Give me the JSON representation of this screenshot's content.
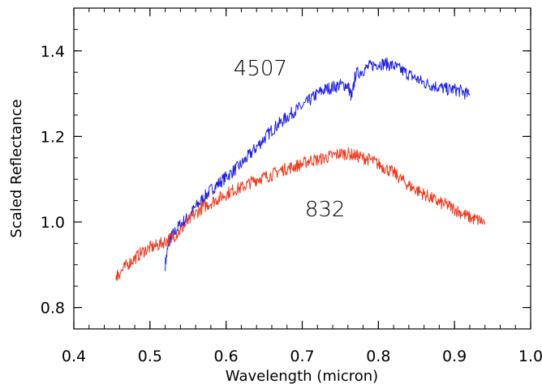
{
  "chart_data": {
    "type": "line",
    "title": "",
    "xlabel": "Wavelength (micron)",
    "ylabel": "Scaled Reflectance",
    "xlim": [
      0.4,
      1.0
    ],
    "ylim": [
      0.75,
      1.5
    ],
    "x_ticks": [
      0.4,
      0.5,
      0.6,
      0.7,
      0.8,
      0.9,
      1.0
    ],
    "x_tick_labels": [
      "0.4",
      "0.5",
      "0.6",
      "0.7",
      "0.8",
      "0.9",
      "1.0"
    ],
    "y_ticks": [
      0.8,
      1.0,
      1.2,
      1.4
    ],
    "y_tick_labels": [
      "0.8",
      "1.0",
      "1.2",
      "1.4"
    ],
    "grid": false,
    "legend": "none",
    "annotations": [
      {
        "text": "4507",
        "x": 0.645,
        "y": 1.36
      },
      {
        "text": "832",
        "x": 0.73,
        "y": 1.03
      }
    ],
    "series": [
      {
        "color": "#1f1fe6",
        "x": [
          0.52,
          0.525,
          0.53,
          0.54,
          0.55,
          0.56,
          0.57,
          0.58,
          0.59,
          0.6,
          0.61,
          0.62,
          0.63,
          0.64,
          0.65,
          0.66,
          0.67,
          0.68,
          0.69,
          0.7,
          0.71,
          0.72,
          0.73,
          0.74,
          0.75,
          0.76,
          0.765,
          0.77,
          0.78,
          0.79,
          0.8,
          0.81,
          0.82,
          0.83,
          0.84,
          0.85,
          0.86,
          0.87,
          0.88,
          0.89,
          0.9,
          0.91,
          0.92
        ],
        "y": [
          0.9,
          0.955,
          0.97,
          0.995,
          1.01,
          1.035,
          1.055,
          1.075,
          1.09,
          1.105,
          1.12,
          1.135,
          1.155,
          1.175,
          1.195,
          1.215,
          1.23,
          1.245,
          1.26,
          1.27,
          1.285,
          1.3,
          1.31,
          1.315,
          1.32,
          1.32,
          1.29,
          1.345,
          1.355,
          1.365,
          1.37,
          1.37,
          1.365,
          1.355,
          1.345,
          1.335,
          1.325,
          1.32,
          1.315,
          1.31,
          1.31,
          1.305,
          1.295
        ]
      },
      {
        "color": "#f03a1e",
        "x": [
          0.455,
          0.46,
          0.47,
          0.48,
          0.49,
          0.5,
          0.51,
          0.52,
          0.53,
          0.54,
          0.55,
          0.56,
          0.57,
          0.58,
          0.59,
          0.6,
          0.61,
          0.62,
          0.63,
          0.64,
          0.65,
          0.66,
          0.67,
          0.68,
          0.69,
          0.7,
          0.71,
          0.72,
          0.73,
          0.74,
          0.75,
          0.76,
          0.77,
          0.78,
          0.79,
          0.8,
          0.81,
          0.82,
          0.83,
          0.84,
          0.85,
          0.86,
          0.87,
          0.88,
          0.89,
          0.9,
          0.91,
          0.92,
          0.93,
          0.94
        ],
        "y": [
          0.875,
          0.88,
          0.9,
          0.915,
          0.93,
          0.94,
          0.945,
          0.955,
          0.965,
          0.98,
          1.0,
          1.02,
          1.035,
          1.045,
          1.055,
          1.065,
          1.075,
          1.08,
          1.09,
          1.1,
          1.105,
          1.11,
          1.12,
          1.125,
          1.13,
          1.135,
          1.145,
          1.145,
          1.15,
          1.155,
          1.16,
          1.16,
          1.155,
          1.15,
          1.145,
          1.135,
          1.125,
          1.115,
          1.1,
          1.085,
          1.075,
          1.065,
          1.055,
          1.045,
          1.04,
          1.03,
          1.02,
          1.01,
          1.005,
          1.0
        ]
      }
    ]
  }
}
